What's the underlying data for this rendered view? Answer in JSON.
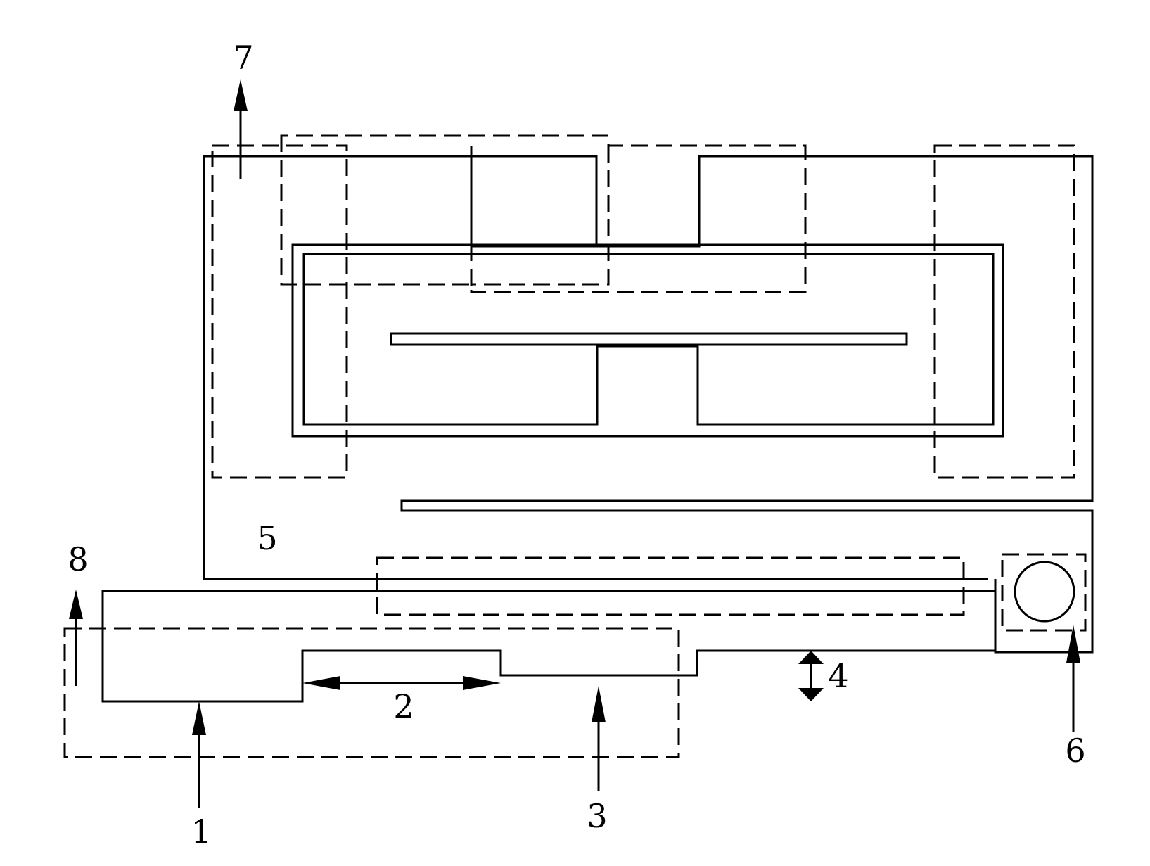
{
  "diagram": {
    "labels": {
      "l1": "1",
      "l2": "2",
      "l3": "3",
      "l4": "4",
      "l5": "5",
      "l6": "6",
      "l7": "7",
      "l8": "8"
    },
    "stroke_color": "#000000",
    "background_color": "#ffffff"
  }
}
